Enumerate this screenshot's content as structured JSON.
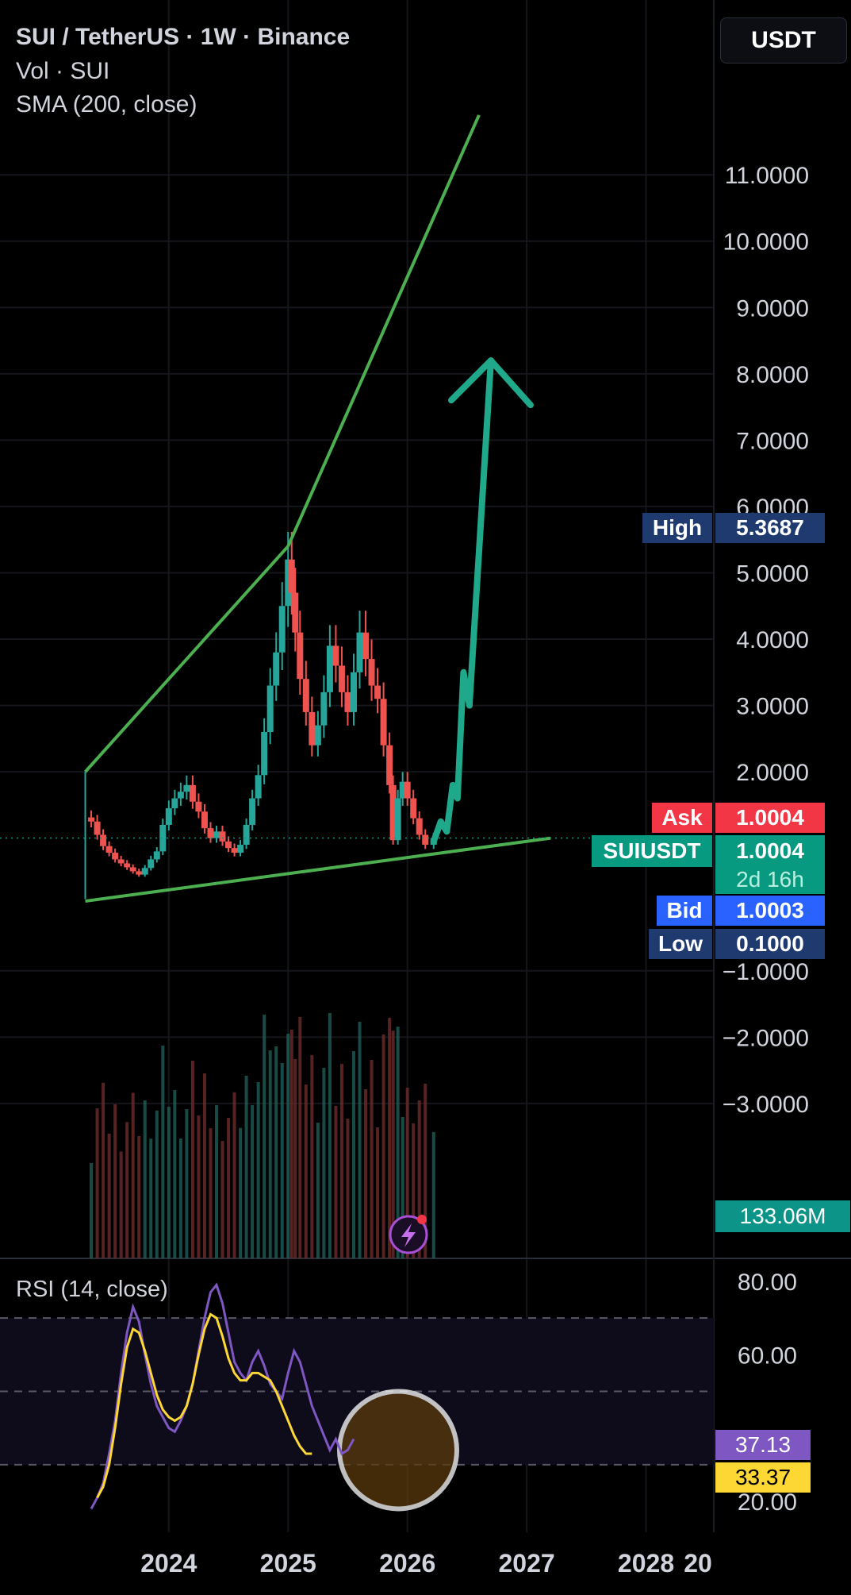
{
  "header": {
    "title": "SUI / TetherUS · 1W · Binance",
    "vol": "Vol · SUI",
    "sma": "SMA (200, close)",
    "currency": "USDT"
  },
  "price_labels": {
    "high_label": "High",
    "high_value": "5.3687",
    "ask_label": "Ask",
    "ask_value": "1.0004",
    "symbol_label": "SUIUSDT",
    "last_value": "1.0004",
    "countdown": "2d 16h",
    "bid_label": "Bid",
    "bid_value": "1.0003",
    "low_label": "Low",
    "low_value": "0.1000",
    "volume_value": "133.06M",
    "rsi_value": "37.13",
    "rsi_ma_value": "33.37"
  },
  "rsi_panel": {
    "label": "RSI (14, close)"
  },
  "colors": {
    "up": "#26a69a",
    "down": "#ef5350",
    "trendline": "#4caf50",
    "arrow": "#1fa98a",
    "rsi": "#7e57c2",
    "rsi_ma": "#fdd835",
    "high_tag": "#1e3a6e",
    "ask_tag": "#f23645",
    "bid_tag": "#2962ff",
    "vol_tag": "#0d9488",
    "circle_fill": "#5a3a0c"
  },
  "chart_data": [
    {
      "type": "candlestick",
      "title": "SUI / TetherUS · 1W · Binance",
      "x_ticks": [
        "2024",
        "2025",
        "2026",
        "2027",
        "2028",
        "20"
      ],
      "y_ticks": [
        "11.0000",
        "10.0000",
        "9.0000",
        "8.0000",
        "7.0000",
        "6.0000",
        "5.0000",
        "4.0000",
        "3.0000",
        "2.0000",
        "−1.0000",
        "−2.0000",
        "−3.0000"
      ],
      "ylim": [
        -3.6,
        11.9
      ],
      "xlim": [
        2023.25,
        2029.1
      ],
      "series_close": [
        [
          2023.35,
          1.25
        ],
        [
          2023.4,
          1.05
        ],
        [
          2023.45,
          0.88
        ],
        [
          2023.5,
          0.78
        ],
        [
          2023.55,
          0.68
        ],
        [
          2023.6,
          0.62
        ],
        [
          2023.65,
          0.56
        ],
        [
          2023.7,
          0.5
        ],
        [
          2023.75,
          0.45
        ],
        [
          2023.8,
          0.55
        ],
        [
          2023.85,
          0.68
        ],
        [
          2023.9,
          0.8
        ],
        [
          2023.95,
          1.2
        ],
        [
          2024.0,
          1.45
        ],
        [
          2024.05,
          1.6
        ],
        [
          2024.1,
          1.7
        ],
        [
          2024.15,
          1.8
        ],
        [
          2024.2,
          1.55
        ],
        [
          2024.25,
          1.4
        ],
        [
          2024.3,
          1.15
        ],
        [
          2024.35,
          1.0
        ],
        [
          2024.4,
          1.1
        ],
        [
          2024.45,
          0.95
        ],
        [
          2024.5,
          0.85
        ],
        [
          2024.55,
          0.78
        ],
        [
          2024.6,
          0.9
        ],
        [
          2024.65,
          1.2
        ],
        [
          2024.7,
          1.6
        ],
        [
          2024.75,
          1.95
        ],
        [
          2024.8,
          2.6
        ],
        [
          2024.85,
          3.3
        ],
        [
          2024.9,
          3.8
        ],
        [
          2024.95,
          4.5
        ],
        [
          2025.0,
          5.2
        ],
        [
          2025.03,
          4.7
        ],
        [
          2025.06,
          4.1
        ],
        [
          2025.1,
          3.4
        ],
        [
          2025.15,
          2.9
        ],
        [
          2025.2,
          2.4
        ],
        [
          2025.25,
          2.7
        ],
        [
          2025.3,
          3.2
        ],
        [
          2025.35,
          3.9
        ],
        [
          2025.4,
          3.6
        ],
        [
          2025.45,
          3.2
        ],
        [
          2025.5,
          2.9
        ],
        [
          2025.55,
          3.5
        ],
        [
          2025.6,
          4.1
        ],
        [
          2025.65,
          3.7
        ],
        [
          2025.7,
          3.3
        ],
        [
          2025.75,
          3.1
        ],
        [
          2025.8,
          2.4
        ],
        [
          2025.85,
          1.8
        ],
        [
          2025.88,
          0.97
        ],
        [
          2025.92,
          1.6
        ],
        [
          2025.96,
          1.85
        ],
        [
          2026.0,
          1.6
        ],
        [
          2026.05,
          1.3
        ],
        [
          2026.1,
          1.05
        ],
        [
          2026.15,
          0.9
        ],
        [
          2026.22,
          1.0
        ]
      ],
      "projection": [
        [
          2026.22,
          0.95
        ],
        [
          2026.28,
          1.25
        ],
        [
          2026.33,
          1.1
        ],
        [
          2026.38,
          1.8
        ],
        [
          2026.42,
          1.6
        ],
        [
          2026.47,
          3.5
        ],
        [
          2026.52,
          3.0
        ],
        [
          2026.7,
          8.2
        ]
      ],
      "trendlines": [
        {
          "from": [
            2023.3,
            2.0
          ],
          "to": [
            2025.0,
            5.4
          ]
        },
        {
          "from": [
            2025.0,
            5.4
          ],
          "to": [
            2026.6,
            11.9
          ]
        },
        {
          "from": [
            2023.3,
            0.05
          ],
          "to": [
            2027.2,
            1.0
          ]
        }
      ],
      "high": 5.3687,
      "low": 0.1,
      "last": 1.0004
    },
    {
      "type": "bar",
      "title": "Vol · SUI",
      "last_value": "133.06M"
    },
    {
      "type": "line",
      "title": "RSI (14, close)",
      "y_ticks": [
        "80.00",
        "60.00",
        "20.00"
      ],
      "ylim": [
        17,
        83
      ],
      "bands": [
        70,
        50,
        30
      ],
      "series": [
        {
          "values": [
            [
              2023.35,
              18
            ],
            [
              2023.4,
              21
            ],
            [
              2023.45,
              25
            ],
            [
              2023.5,
              33
            ],
            [
              2023.55,
              42
            ],
            [
              2023.6,
              55
            ],
            [
              2023.65,
              66
            ],
            [
              2023.7,
              73
            ],
            [
              2023.75,
              69
            ],
            [
              2023.8,
              60
            ],
            [
              2023.85,
              52
            ],
            [
              2023.9,
              46
            ],
            [
              2023.95,
              43
            ],
            [
              2024.0,
              40
            ],
            [
              2024.05,
              39
            ],
            [
              2024.1,
              42
            ],
            [
              2024.15,
              46
            ],
            [
              2024.2,
              52
            ],
            [
              2024.25,
              61
            ],
            [
              2024.3,
              70
            ],
            [
              2024.35,
              77
            ],
            [
              2024.4,
              79
            ],
            [
              2024.45,
              74
            ],
            [
              2024.5,
              66
            ],
            [
              2024.55,
              58
            ],
            [
              2024.6,
              55
            ],
            [
              2024.65,
              53
            ],
            [
              2024.7,
              58
            ],
            [
              2024.75,
              61
            ],
            [
              2024.8,
              57
            ],
            [
              2024.85,
              52
            ],
            [
              2024.9,
              50
            ],
            [
              2024.95,
              48
            ],
            [
              2025.0,
              55
            ],
            [
              2025.05,
              61
            ],
            [
              2025.1,
              58
            ],
            [
              2025.15,
              52
            ],
            [
              2025.2,
              46
            ],
            [
              2025.25,
              42
            ],
            [
              2025.3,
              38
            ],
            [
              2025.35,
              34
            ],
            [
              2025.4,
              37
            ],
            [
              2025.45,
              33
            ],
            [
              2025.5,
              34
            ],
            [
              2025.55,
              37
            ]
          ]
        },
        {
          "values": [
            [
              2023.4,
              21
            ],
            [
              2023.45,
              24
            ],
            [
              2023.5,
              30
            ],
            [
              2023.55,
              40
            ],
            [
              2023.6,
              52
            ],
            [
              2023.65,
              62
            ],
            [
              2023.7,
              67
            ],
            [
              2023.75,
              66
            ],
            [
              2023.8,
              61
            ],
            [
              2023.85,
              55
            ],
            [
              2023.9,
              49
            ],
            [
              2023.95,
              45
            ],
            [
              2024.0,
              43
            ],
            [
              2024.05,
              42
            ],
            [
              2024.1,
              43
            ],
            [
              2024.15,
              46
            ],
            [
              2024.2,
              52
            ],
            [
              2024.25,
              60
            ],
            [
              2024.3,
              67
            ],
            [
              2024.35,
              71
            ],
            [
              2024.4,
              70
            ],
            [
              2024.45,
              65
            ],
            [
              2024.5,
              59
            ],
            [
              2024.55,
              55
            ],
            [
              2024.6,
              53
            ],
            [
              2024.65,
              53
            ],
            [
              2024.7,
              55
            ],
            [
              2024.75,
              55
            ],
            [
              2024.8,
              54
            ],
            [
              2024.85,
              53
            ],
            [
              2024.9,
              50
            ],
            [
              2024.95,
              46
            ],
            [
              2025.0,
              42
            ],
            [
              2025.05,
              38
            ],
            [
              2025.1,
              35
            ],
            [
              2025.15,
              33
            ],
            [
              2025.2,
              33
            ]
          ]
        }
      ],
      "last_rsi": 37.13,
      "last_ma": 33.37
    }
  ]
}
